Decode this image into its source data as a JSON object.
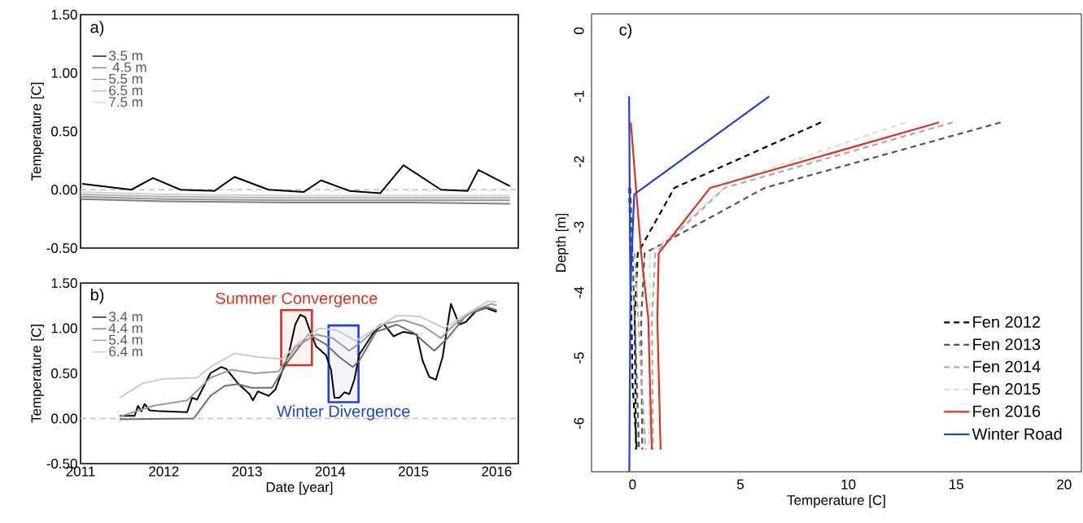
{
  "chart_data": [
    {
      "type": "line",
      "title": "a)",
      "ylabel": "Temperature [C]",
      "xlim": [
        2011,
        2016.26
      ],
      "ylim": [
        -0.5,
        1.5
      ],
      "xticks": [
        2011,
        2012,
        2013,
        2014,
        2015,
        2016
      ],
      "yticks": [
        {
          "value": -0.5,
          "label": "-0.50"
        },
        {
          "value": 0,
          "label": "0.00"
        },
        {
          "value": 0.5,
          "label": "0.50"
        },
        {
          "value": 1,
          "label": "1.00"
        },
        {
          "value": 1.5,
          "label": "1.50"
        }
      ],
      "tick_labels": "y",
      "legend": "top left",
      "ref_lines": [
        {
          "axis": "y",
          "value": 0,
          "color": "#bdbdbd",
          "line_style": "dashed"
        }
      ],
      "series": [
        {
          "name": "3.5 m",
          "color": "#000000",
          "x": [
            2011.02,
            2011.61,
            2011.87,
            2012.2,
            2012.61,
            2012.85,
            2013.26,
            2013.68,
            2013.89,
            2014.23,
            2014.6,
            2014.88,
            2015.33,
            2015.65,
            2015.78,
            2016.16
          ],
          "values": [
            0.05,
            0.0,
            0.1,
            0.0,
            -0.01,
            0.11,
            0.0,
            -0.02,
            0.08,
            -0.01,
            -0.03,
            0.21,
            0.0,
            -0.01,
            0.17,
            0.03
          ]
        },
        {
          "name": " 4.5 m",
          "color": "#7f7f7f",
          "x": [
            2011.0,
            2012.0,
            2013.5,
            2015.0,
            2016.16
          ],
          "values": [
            -0.08,
            -0.1,
            -0.11,
            -0.11,
            -0.12
          ]
        },
        {
          "name": "5.5 m",
          "color": "#969696",
          "x": [
            2011.0,
            2012.0,
            2013.5,
            2015.0,
            2016.16
          ],
          "values": [
            -0.06,
            -0.08,
            -0.09,
            -0.09,
            -0.09
          ]
        },
        {
          "name": "6.5 m",
          "color": "#b4b4b4",
          "x": [
            2011.0,
            2012.0,
            2013.5,
            2015.0,
            2016.16
          ],
          "values": [
            -0.04,
            -0.06,
            -0.07,
            -0.07,
            -0.07
          ]
        },
        {
          "name": "7.5 m",
          "color": "#d2d2d2",
          "x": [
            2011.0,
            2012.0,
            2013.5,
            2015.0,
            2016.16
          ],
          "values": [
            -0.02,
            -0.04,
            -0.05,
            -0.05,
            -0.05
          ]
        }
      ]
    },
    {
      "type": "line",
      "title": "b)",
      "xlabel": "Date [year]",
      "ylabel": "Temperature [C]",
      "xlim": [
        2011,
        2016.26
      ],
      "ylim": [
        -0.5,
        1.5
      ],
      "xticks": [
        2011,
        2012,
        2013,
        2014,
        2015,
        2016
      ],
      "yticks": [
        {
          "value": -0.5,
          "label": "-0.50"
        },
        {
          "value": 0,
          "label": "0.00"
        },
        {
          "value": 0.5,
          "label": "0.50"
        },
        {
          "value": 1,
          "label": "1.00"
        },
        {
          "value": 1.5,
          "label": "1.50"
        }
      ],
      "legend": "top left",
      "ref_lines": [
        {
          "axis": "y",
          "value": 0,
          "color": "#bdbdbd",
          "line_style": "dashed"
        }
      ],
      "bands": [
        {
          "axis": "x",
          "from": 2013.41,
          "to": 2013.78,
          "color": "#e0301e",
          "label": "Summer Convergence"
        },
        {
          "axis": "x",
          "from": 2013.98,
          "to": 2014.34,
          "color": "#1f3fe0",
          "label": "Winter Divergence"
        }
      ],
      "series": [
        {
          "name": "3.4 m",
          "color": "#000000",
          "x": [
            2011.47,
            2011.65,
            2011.69,
            2011.73,
            2011.77,
            2011.83,
            2011.96,
            2012.28,
            2012.34,
            2012.4,
            2012.56,
            2012.69,
            2012.75,
            2012.89,
            2013.03,
            2013.07,
            2013.13,
            2013.26,
            2013.34,
            2013.5,
            2013.58,
            2013.64,
            2013.7,
            2013.76,
            2013.83,
            2013.95,
            2014.01,
            2014.05,
            2014.11,
            2014.17,
            2014.23,
            2014.29,
            2014.35,
            2014.52,
            2014.64,
            2014.76,
            2014.88,
            2015.04,
            2015.11,
            2015.19,
            2015.27,
            2015.35,
            2015.45,
            2015.49,
            2015.55,
            2015.63,
            2015.74,
            2015.86,
            2016.0
          ],
          "values": [
            0.03,
            0.03,
            0.14,
            0.08,
            0.16,
            0.09,
            0.08,
            0.07,
            0.23,
            0.21,
            0.5,
            0.57,
            0.55,
            0.39,
            0.27,
            0.2,
            0.3,
            0.25,
            0.32,
            0.71,
            1.04,
            1.15,
            1.12,
            0.96,
            0.8,
            0.7,
            0.54,
            0.23,
            0.23,
            0.29,
            0.27,
            0.43,
            0.71,
            0.95,
            1.05,
            0.91,
            0.96,
            0.93,
            0.64,
            0.46,
            0.43,
            0.68,
            1.27,
            1.18,
            1.04,
            1.07,
            1.18,
            1.23,
            1.18
          ]
        },
        {
          "name": "4.4 m",
          "color": "#6e6e6e",
          "x": [
            2011.47,
            2012.36,
            2012.56,
            2012.73,
            2012.89,
            2013.05,
            2013.3,
            2013.5,
            2013.74,
            2013.95,
            2014.11,
            2014.27,
            2014.35,
            2014.55,
            2014.8,
            2015.0,
            2015.25,
            2015.41,
            2015.65,
            2015.9,
            2016.0
          ],
          "values": [
            -0.01,
            0.0,
            0.25,
            0.36,
            0.38,
            0.34,
            0.34,
            0.64,
            0.93,
            0.82,
            0.68,
            0.57,
            0.64,
            0.96,
            1.04,
            0.95,
            0.75,
            0.89,
            1.16,
            1.23,
            1.2
          ]
        },
        {
          "name": "5.4 m",
          "color": "#9a9a9a",
          "x": [
            2011.47,
            2011.87,
            2012.28,
            2012.56,
            2012.81,
            2013.09,
            2013.38,
            2013.58,
            2013.83,
            2014.03,
            2014.23,
            2014.39,
            2014.6,
            2014.88,
            2015.12,
            2015.33,
            2015.49,
            2015.74,
            2015.94,
            2016.0
          ],
          "values": [
            0.02,
            0.14,
            0.2,
            0.45,
            0.54,
            0.5,
            0.52,
            0.79,
            0.93,
            0.89,
            0.75,
            0.86,
            1.04,
            1.09,
            1.02,
            0.89,
            1.04,
            1.2,
            1.27,
            1.25
          ]
        },
        {
          "name": "6.4 m",
          "color": "#cccccc",
          "x": [
            2011.47,
            2011.75,
            2012.0,
            2012.4,
            2012.56,
            2012.85,
            2013.13,
            2013.42,
            2013.62,
            2013.87,
            2014.07,
            2014.31,
            2014.52,
            2014.8,
            2015.08,
            2015.37,
            2015.61,
            2015.9,
            2016.0
          ],
          "values": [
            0.23,
            0.39,
            0.44,
            0.45,
            0.57,
            0.72,
            0.68,
            0.66,
            0.84,
            1.0,
            0.98,
            0.86,
            0.98,
            1.14,
            1.13,
            1.0,
            1.14,
            1.3,
            1.29
          ]
        }
      ]
    },
    {
      "type": "line",
      "title": "c)",
      "xlabel": "Temperature [C]",
      "ylabel": "Depth [m]",
      "xlim": [
        -1.9,
        20.8
      ],
      "ylim": [
        -6.74,
        0.26
      ],
      "xticks": [
        0,
        5,
        10,
        15,
        20
      ],
      "yticks": [
        -6,
        -5,
        -4,
        -3,
        -2,
        -1,
        0
      ],
      "legend": "bottom right",
      "series": [
        {
          "name": "Fen 2012",
          "color": "#000000",
          "line_style": "dashed",
          "x": [
            8.73,
            1.94,
            0.24,
            0.1,
            0.16,
            null,
            -0.15,
            -0.1,
            -0.05,
            0.0,
            0.2
          ],
          "values": [
            -1.4,
            -2.4,
            -3.4,
            -4.4,
            -6.4,
            null,
            -2.4,
            -3.4,
            -4.4,
            -5.4,
            -6.4
          ]
        },
        {
          "name": "Fen 2013",
          "color": "#555555",
          "line_style": "dashed",
          "x": [
            17.06,
            6.13,
            0.56,
            0.4,
            0.45,
            null,
            -0.1,
            0.1,
            0.3
          ],
          "values": [
            -1.4,
            -2.4,
            -3.4,
            -4.4,
            -6.4,
            null,
            -2.4,
            -4.4,
            -6.4
          ]
        },
        {
          "name": "Fen 2014",
          "color": "#aaaaaa",
          "line_style": "dashed",
          "x": [
            14.84,
            4.27,
            1.05,
            0.9,
            0.95,
            null,
            0.1,
            0.6
          ],
          "values": [
            -1.4,
            -2.4,
            -3.4,
            -4.4,
            -6.4,
            null,
            -3.4,
            -6.4
          ]
        },
        {
          "name": "Fen 2015",
          "color": "#dddddd",
          "line_style": "dashed",
          "x": [
            12.66,
            4.6,
            0.8,
            0.8,
            0.75
          ],
          "values": [
            -1.4,
            -2.3,
            -3.4,
            -4.4,
            -6.4
          ]
        },
        {
          "name": "Fen 2016",
          "color": "#e0301e",
          "line_style": "solid",
          "x": [
            14.2,
            3.6,
            1.21,
            1.15,
            1.3,
            null,
            -0.08,
            0.4,
            0.73,
            0.89
          ],
          "values": [
            -1.4,
            -2.4,
            -3.4,
            -4.4,
            -6.4,
            null,
            -1.4,
            -3.4,
            -4.4,
            -6.4
          ]
        },
        {
          "name": "Winter Road",
          "color": "#1f3fe0",
          "line_style": "solid",
          "x": [
            -0.16,
            -0.1,
            -0.15,
            null,
            6.34,
            0.08,
            -0.05,
            -0.1
          ],
          "values": [
            -1.0,
            -4.0,
            -6.74,
            null,
            -1.0,
            -2.5,
            -3.5,
            -4.0
          ]
        }
      ]
    }
  ]
}
